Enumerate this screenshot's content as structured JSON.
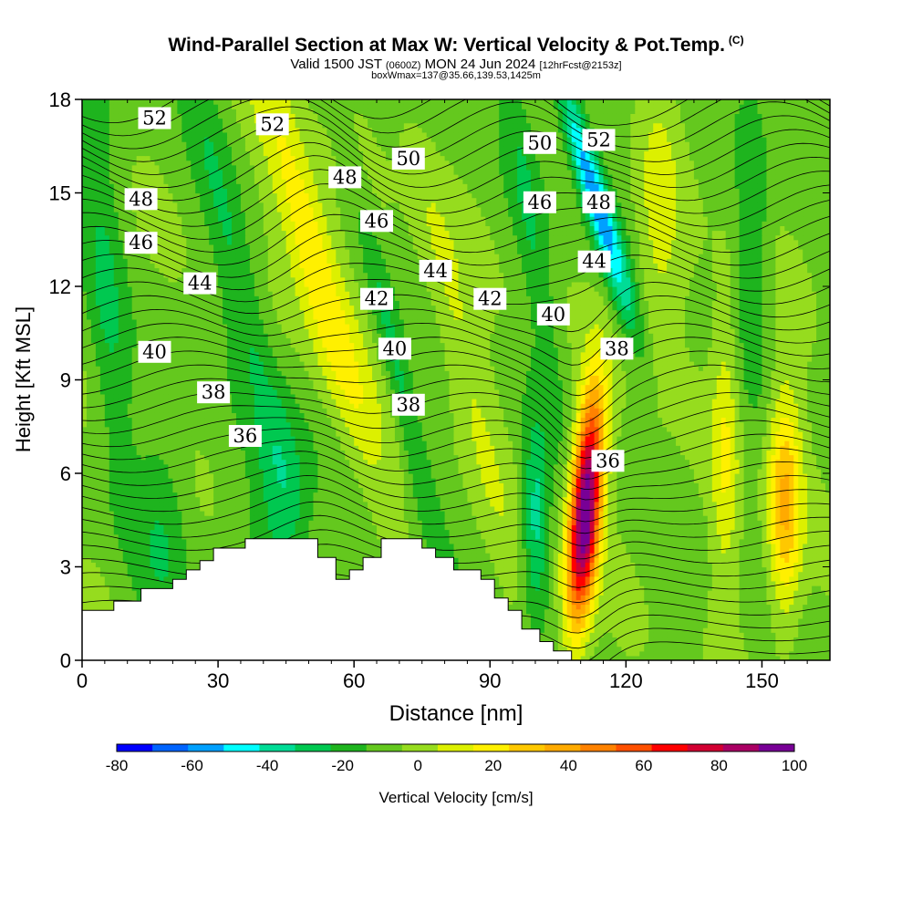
{
  "header": {
    "title": "Wind-Parallel Section at Max W: Vertical Velocity & Pot.Temp.",
    "copyright": "(C)",
    "valid_prefix": "Valid 1500 JST",
    "valid_utc": "(0600Z)",
    "valid_date": "MON 24 Jun 2024",
    "forecast": "[12hrFcst@2153z]",
    "box_info": "boxWmax=137@35.66,139.53,1425m"
  },
  "chart_data": {
    "type": "heatmap",
    "title": "Wind-Parallel Section at Max W: Vertical Velocity & Pot.Temp.",
    "xlabel": "Distance [nm]",
    "ylabel": "Height [Kft MSL]",
    "xlim": [
      0,
      165
    ],
    "ylim": [
      0,
      18
    ],
    "x_ticks": [
      0,
      30,
      60,
      90,
      120,
      150
    ],
    "y_ticks": [
      0,
      3,
      6,
      9,
      12,
      15,
      18
    ],
    "colorbar": {
      "label": "Vertical Velocity [cm/s]",
      "min": -80,
      "max": 100,
      "step": 10,
      "tick_values": [
        -80,
        -60,
        -40,
        -20,
        0,
        20,
        40,
        60,
        80,
        100
      ],
      "colors": [
        "#0000ff",
        "#0064ff",
        "#00a0ff",
        "#00ffff",
        "#00dc96",
        "#00c850",
        "#1eb41e",
        "#64c81e",
        "#96dc1e",
        "#dcf000",
        "#fff000",
        "#ffc800",
        "#ffaa00",
        "#ff8200",
        "#ff5000",
        "#ff0000",
        "#d20032",
        "#aa0064",
        "#780096"
      ]
    },
    "max_vertical_velocity_cms": 137,
    "max_location": "35.66,139.53",
    "max_height_m": 1425,
    "theta_contour_labels": [
      {
        "label": "52",
        "x": 16,
        "y": 17.4
      },
      {
        "label": "52",
        "x": 42,
        "y": 17.2
      },
      {
        "label": "50",
        "x": 72,
        "y": 16.1
      },
      {
        "label": "50",
        "x": 101,
        "y": 16.6
      },
      {
        "label": "52",
        "x": 114,
        "y": 16.7
      },
      {
        "label": "48",
        "x": 13,
        "y": 14.8
      },
      {
        "label": "48",
        "x": 58,
        "y": 15.5
      },
      {
        "label": "48",
        "x": 114,
        "y": 14.7
      },
      {
        "label": "46",
        "x": 13,
        "y": 13.4
      },
      {
        "label": "46",
        "x": 65,
        "y": 14.1
      },
      {
        "label": "46",
        "x": 101,
        "y": 14.7
      },
      {
        "label": "44",
        "x": 26,
        "y": 12.1
      },
      {
        "label": "44",
        "x": 78,
        "y": 12.5
      },
      {
        "label": "44",
        "x": 113,
        "y": 12.8
      },
      {
        "label": "42",
        "x": 65,
        "y": 11.6
      },
      {
        "label": "42",
        "x": 90,
        "y": 11.6
      },
      {
        "label": "40",
        "x": 16,
        "y": 9.9
      },
      {
        "label": "40",
        "x": 69,
        "y": 10.0
      },
      {
        "label": "40",
        "x": 104,
        "y": 11.1
      },
      {
        "label": "38",
        "x": 29,
        "y": 8.6
      },
      {
        "label": "38",
        "x": 72,
        "y": 8.2
      },
      {
        "label": "38",
        "x": 118,
        "y": 10.0
      },
      {
        "label": "36",
        "x": 36,
        "y": 7.2
      },
      {
        "label": "36",
        "x": 116,
        "y": 6.4
      }
    ],
    "features": [
      {
        "type": "updraft",
        "x_center": 111,
        "y_center": 5,
        "peak_cms": 100
      },
      {
        "type": "updraft",
        "x_center": 155,
        "y_center": 5,
        "peak_cms": 40
      },
      {
        "type": "updraft",
        "x_center": 52,
        "y_center": 12,
        "peak_cms": 40
      },
      {
        "type": "downdraft",
        "x_center": 113,
        "y_center": 15,
        "peak_cms": -50
      }
    ],
    "terrain_kft": [
      [
        0,
        1.6
      ],
      [
        7,
        1.6
      ],
      [
        7,
        1.9
      ],
      [
        13,
        1.9
      ],
      [
        13,
        2.3
      ],
      [
        20,
        2.3
      ],
      [
        20,
        2.6
      ],
      [
        23,
        2.6
      ],
      [
        23,
        2.9
      ],
      [
        26,
        2.9
      ],
      [
        26,
        3.2
      ],
      [
        29,
        3.2
      ],
      [
        29,
        3.6
      ],
      [
        36,
        3.6
      ],
      [
        36,
        3.9
      ],
      [
        52,
        3.9
      ],
      [
        52,
        3.3
      ],
      [
        56,
        3.3
      ],
      [
        56,
        2.6
      ],
      [
        59,
        2.6
      ],
      [
        59,
        2.9
      ],
      [
        62,
        2.9
      ],
      [
        62,
        3.3
      ],
      [
        66,
        3.3
      ],
      [
        66,
        3.9
      ],
      [
        75,
        3.9
      ],
      [
        75,
        3.6
      ],
      [
        78,
        3.6
      ],
      [
        78,
        3.3
      ],
      [
        82,
        3.3
      ],
      [
        82,
        2.9
      ],
      [
        88,
        2.9
      ],
      [
        88,
        2.6
      ],
      [
        91,
        2.6
      ],
      [
        91,
        2.0
      ],
      [
        94,
        2.0
      ],
      [
        94,
        1.6
      ],
      [
        97,
        1.6
      ],
      [
        97,
        1.0
      ],
      [
        101,
        1.0
      ],
      [
        101,
        0.6
      ],
      [
        104,
        0.6
      ],
      [
        104,
        0.3
      ],
      [
        108,
        0.3
      ],
      [
        108,
        0
      ],
      [
        165,
        0
      ]
    ]
  }
}
